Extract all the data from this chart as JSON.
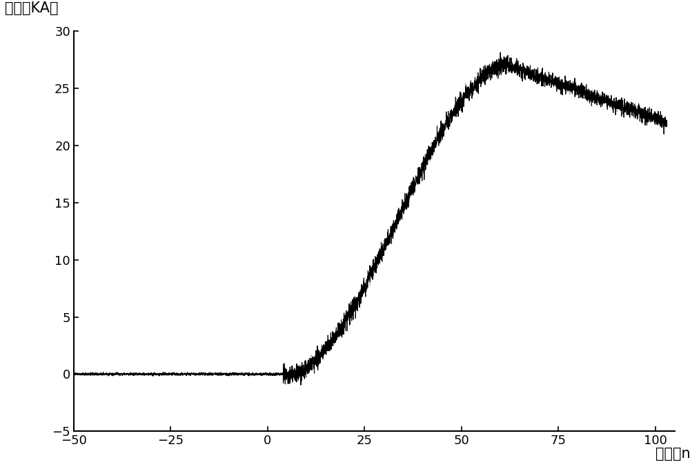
{
  "title": "",
  "ylabel": "电流（KA）",
  "xlabel": "时间（ns）",
  "xlim": [
    -50,
    105
  ],
  "ylim": [
    -5,
    30
  ],
  "xticks": [
    -50,
    -25,
    0,
    25,
    50,
    75,
    100
  ],
  "yticks": [
    -5,
    0,
    5,
    10,
    15,
    20,
    25,
    30
  ],
  "background_color": "#ffffff",
  "line1_color": "#000000",
  "line2_color": "#999999"
}
